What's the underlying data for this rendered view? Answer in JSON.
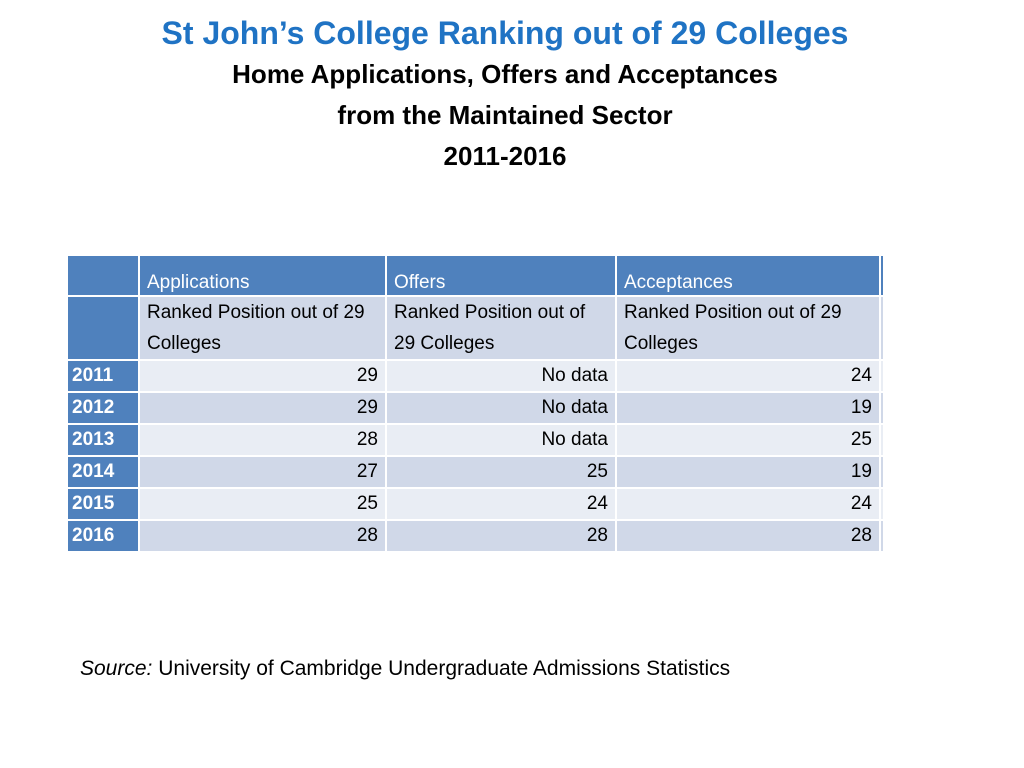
{
  "title": "St John’s College Ranking out of 29 Colleges",
  "subtitle_lines": [
    "Home Applications, Offers and Acceptances",
    "from the Maintained Sector",
    "2011-2016"
  ],
  "table": {
    "columns": [
      "Applications",
      "Offers",
      "Acceptances"
    ],
    "subheaders": [
      "Ranked Position out of 29 Colleges",
      "Ranked Position out of 29 Colleges",
      "Ranked Position out of 29 Colleges"
    ],
    "rows": [
      {
        "year": "2011",
        "applications": "29",
        "offers": "No data",
        "acceptances": "24"
      },
      {
        "year": "2012",
        "applications": "29",
        "offers": "No data",
        "acceptances": "19"
      },
      {
        "year": "2013",
        "applications": "28",
        "offers": "No data",
        "acceptances": "25"
      },
      {
        "year": "2014",
        "applications": "27",
        "offers": "25",
        "acceptances": "19"
      },
      {
        "year": "2015",
        "applications": "25",
        "offers": "24",
        "acceptances": "24"
      },
      {
        "year": "2016",
        "applications": "28",
        "offers": "28",
        "acceptances": "28"
      }
    ]
  },
  "source": {
    "label": "Source:",
    "text": "University of Cambridge Undergraduate Admissions Statistics"
  },
  "colors": {
    "title": "#1f73c4",
    "header": "#4f81bd",
    "row_dark": "#d0d8e8",
    "row_light": "#e9edf4"
  }
}
